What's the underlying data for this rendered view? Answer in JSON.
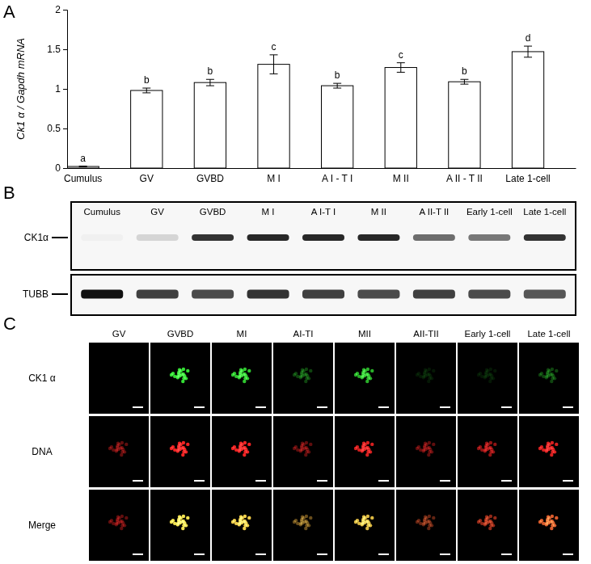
{
  "chart_data": {
    "type": "bar",
    "y_label": "Ck1 α / Gapdh mRNA",
    "categories": [
      "Cumulus",
      "GV",
      "GVBD",
      "M I",
      "A I - T I",
      "M II",
      "A II - T II",
      "Late 1-cell"
    ],
    "values": [
      0.02,
      0.98,
      1.08,
      1.31,
      1.04,
      1.27,
      1.09,
      1.47
    ],
    "errors": [
      0.005,
      0.03,
      0.04,
      0.12,
      0.03,
      0.06,
      0.03,
      0.07
    ],
    "letters": [
      "a",
      "b",
      "b",
      "c",
      "b",
      "c",
      "b",
      "d"
    ],
    "color": "#ffffff",
    "ylim": [
      0,
      2
    ],
    "yticks": [
      0,
      0.5,
      1,
      1.5,
      2
    ],
    "grid": false
  },
  "figure": {
    "panel_labels": [
      "A",
      "B",
      "C"
    ],
    "blot": {
      "lanes": [
        "Cumulus",
        "GV",
        "GVBD",
        "M I",
        "A I-T I",
        "M II",
        "A II-T II",
        "Early 1-cell",
        "Late 1-cell"
      ],
      "rows": [
        {
          "label": "CK1α",
          "intensity": [
            0.03,
            0.15,
            0.85,
            0.9,
            0.9,
            0.9,
            0.6,
            0.55,
            0.85
          ]
        },
        {
          "label": "TUBB",
          "intensity": [
            1,
            0.8,
            0.75,
            0.85,
            0.8,
            0.75,
            0.8,
            0.75,
            0.7
          ]
        }
      ]
    },
    "micrographs": {
      "columns": [
        "GV",
        "GVBD",
        "MI",
        "AI-TI",
        "MII",
        "AII-TII",
        "Early 1-cell",
        "Late 1-cell"
      ],
      "rows": [
        "CK1 α",
        "DNA",
        "Merge"
      ],
      "ck1a_signal": [
        0,
        1,
        0.9,
        0.3,
        0.8,
        0.1,
        0.1,
        0.3
      ],
      "dna_signal": [
        0.4,
        1,
        1,
        0.4,
        0.9,
        0.4,
        0.6,
        0.9
      ]
    }
  }
}
